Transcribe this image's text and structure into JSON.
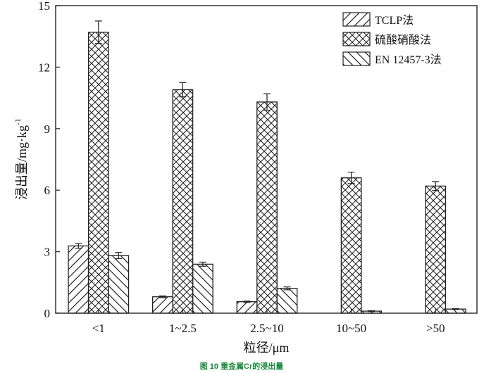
{
  "chart_data": {
    "type": "bar",
    "title": "",
    "caption_num": "图 10",
    "caption_text": "重金属Cr的浸出量",
    "xlabel": "粒径/μm",
    "ylabel": "浸出量/mg·kg",
    "ylabel_sup": "-1",
    "ylim": [
      0,
      15
    ],
    "yticks": [
      "0",
      "3",
      "6",
      "9",
      "12",
      "15"
    ],
    "categories": [
      "<1",
      "1~2.5",
      "2.5~10",
      "10~50",
      ">50"
    ],
    "legend_position": "top-right",
    "series": [
      {
        "name": "TCLP法",
        "pattern": "forward-diagonal",
        "values": [
          3.28,
          0.8,
          0.56,
          0,
          0
        ],
        "errors": [
          0.12,
          0.04,
          0.03,
          0,
          0
        ]
      },
      {
        "name": "硫酸硝酸法",
        "pattern": "crosshatch",
        "values": [
          13.7,
          10.9,
          10.3,
          6.6,
          6.2
        ],
        "errors": [
          0.55,
          0.35,
          0.4,
          0.28,
          0.22
        ]
      },
      {
        "name": "EN 12457-3法",
        "pattern": "back-diagonal",
        "values": [
          2.81,
          2.39,
          1.21,
          0.1,
          0.2
        ],
        "errors": [
          0.15,
          0.1,
          0.07,
          0.02,
          0.02
        ]
      }
    ],
    "colors": {
      "fill": "#ffffff",
      "stroke": "#222222",
      "caption": "#1a8a3a"
    }
  }
}
